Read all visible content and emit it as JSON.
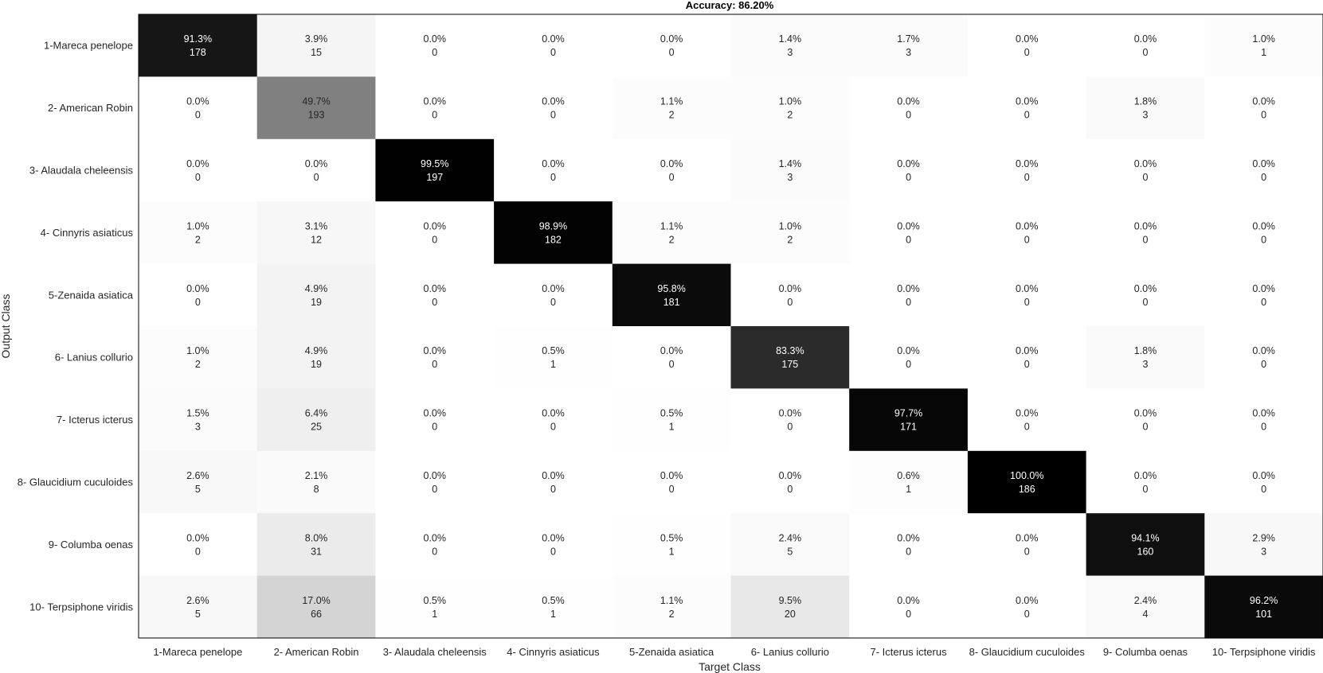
{
  "chart_data": {
    "type": "heatmap",
    "title": "Accuracy: 86.20%",
    "xlabel": "Target Class",
    "ylabel": "Output Class",
    "classes": [
      "1-Mareca penelope",
      "2- American Robin",
      "3- Alaudala cheleensis",
      "4- Cinnyris asiaticus",
      "5-Zenaida asiatica",
      "6- Lanius collurio",
      "7- Icterus icterus",
      "8- Glaucidium cuculoides",
      "9- Columba oenas",
      "10- Terpsiphone viridis"
    ],
    "percent": [
      [
        "91.3%",
        "3.9%",
        "0.0%",
        "0.0%",
        "0.0%",
        "1.4%",
        "1.7%",
        "0.0%",
        "0.0%",
        "1.0%"
      ],
      [
        "0.0%",
        "49.7%",
        "0.0%",
        "0.0%",
        "1.1%",
        "1.0%",
        "0.0%",
        "0.0%",
        "1.8%",
        "0.0%"
      ],
      [
        "0.0%",
        "0.0%",
        "99.5%",
        "0.0%",
        "0.0%",
        "1.4%",
        "0.0%",
        "0.0%",
        "0.0%",
        "0.0%"
      ],
      [
        "1.0%",
        "3.1%",
        "0.0%",
        "98.9%",
        "1.1%",
        "1.0%",
        "0.0%",
        "0.0%",
        "0.0%",
        "0.0%"
      ],
      [
        "0.0%",
        "4.9%",
        "0.0%",
        "0.0%",
        "95.8%",
        "0.0%",
        "0.0%",
        "0.0%",
        "0.0%",
        "0.0%"
      ],
      [
        "1.0%",
        "4.9%",
        "0.0%",
        "0.5%",
        "0.0%",
        "83.3%",
        "0.0%",
        "0.0%",
        "1.8%",
        "0.0%"
      ],
      [
        "1.5%",
        "6.4%",
        "0.0%",
        "0.0%",
        "0.5%",
        "0.0%",
        "97.7%",
        "0.0%",
        "0.0%",
        "0.0%"
      ],
      [
        "2.6%",
        "2.1%",
        "0.0%",
        "0.0%",
        "0.0%",
        "0.0%",
        "0.6%",
        "100.0%",
        "0.0%",
        "0.0%"
      ],
      [
        "0.0%",
        "8.0%",
        "0.0%",
        "0.0%",
        "0.5%",
        "2.4%",
        "0.0%",
        "0.0%",
        "94.1%",
        "2.9%"
      ],
      [
        "2.6%",
        "17.0%",
        "0.5%",
        "0.5%",
        "1.1%",
        "9.5%",
        "0.0%",
        "0.0%",
        "2.4%",
        "96.2%"
      ]
    ],
    "counts": [
      [
        178,
        15,
        0,
        0,
        0,
        3,
        3,
        0,
        0,
        1
      ],
      [
        0,
        193,
        0,
        0,
        2,
        2,
        0,
        0,
        3,
        0
      ],
      [
        0,
        0,
        197,
        0,
        0,
        3,
        0,
        0,
        0,
        0
      ],
      [
        2,
        12,
        0,
        182,
        2,
        2,
        0,
        0,
        0,
        0
      ],
      [
        0,
        19,
        0,
        0,
        181,
        0,
        0,
        0,
        0,
        0
      ],
      [
        2,
        19,
        0,
        1,
        0,
        175,
        0,
        0,
        3,
        0
      ],
      [
        3,
        25,
        0,
        0,
        1,
        0,
        171,
        0,
        0,
        0
      ],
      [
        5,
        8,
        0,
        0,
        0,
        0,
        1,
        186,
        0,
        0
      ],
      [
        0,
        31,
        0,
        0,
        1,
        5,
        0,
        0,
        160,
        3
      ],
      [
        5,
        66,
        1,
        1,
        2,
        20,
        0,
        0,
        4,
        101
      ]
    ],
    "colormap": "grayscale (white = low, black = high percentage)",
    "grid": false,
    "legend": "none"
  }
}
